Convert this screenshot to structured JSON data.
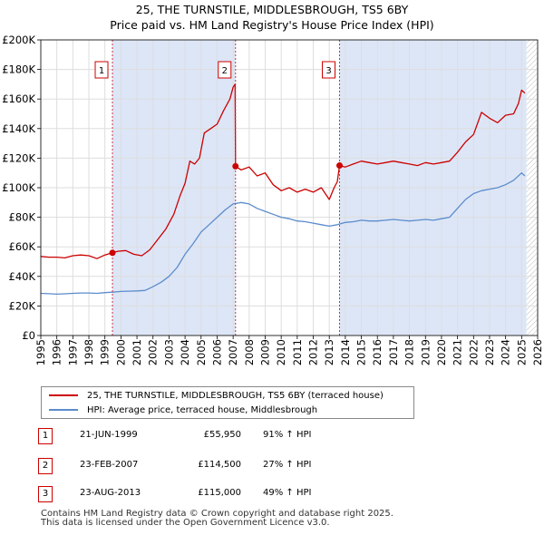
{
  "header": {
    "title_line1": "25, THE TURNSTILE, MIDDLESBROUGH, TS5 6BY",
    "title_line2": "Price paid vs. HM Land Registry's House Price Index (HPI)"
  },
  "colors": {
    "property": "#cc0000",
    "hpi": "#5b8ccc",
    "shade": "#dde6f7",
    "grid": "#dddddd",
    "marker_line": "#cc3344"
  },
  "chart_data": {
    "type": "line",
    "title": "25, THE TURNSTILE, MIDDLESBROUGH, TS5 6BY - Price paid vs. HM Land Registry's House Price Index (HPI)",
    "xlabel": "",
    "ylabel": "",
    "xlim": [
      1995,
      2026
    ],
    "ylim": [
      0,
      200000
    ],
    "x_ticks": [
      "1995",
      "1996",
      "1997",
      "1998",
      "1999",
      "2000",
      "2001",
      "2002",
      "2003",
      "2004",
      "2005",
      "2006",
      "2007",
      "2008",
      "2009",
      "2010",
      "2011",
      "2012",
      "2013",
      "2014",
      "2015",
      "2016",
      "2017",
      "2018",
      "2019",
      "2020",
      "2021",
      "2022",
      "2023",
      "2024",
      "2025",
      "2026"
    ],
    "y_ticks": [
      {
        "value": 0,
        "label": "£0"
      },
      {
        "value": 20000,
        "label": "£20K"
      },
      {
        "value": 40000,
        "label": "£40K"
      },
      {
        "value": 60000,
        "label": "£60K"
      },
      {
        "value": 80000,
        "label": "£80K"
      },
      {
        "value": 100000,
        "label": "£100K"
      },
      {
        "value": 120000,
        "label": "£120K"
      },
      {
        "value": 140000,
        "label": "£140K"
      },
      {
        "value": 160000,
        "label": "£160K"
      },
      {
        "value": 180000,
        "label": "£180K"
      },
      {
        "value": 200000,
        "label": "£200K"
      }
    ],
    "grid": true,
    "shaded_periods": [
      [
        1999.47,
        2007.15
      ],
      [
        2013.64,
        2025.3
      ]
    ],
    "future_hatch_from": 2025.3,
    "series": [
      {
        "name": "25, THE TURNSTILE, MIDDLESBROUGH, TS5 6BY (terraced house)",
        "x": [
          1995,
          1995.5,
          1996,
          1996.5,
          1997,
          1997.5,
          1998,
          1998.5,
          1999,
          1999.47,
          1999.8,
          2000.3,
          2000.8,
          2001.3,
          2001.8,
          2002.3,
          2002.8,
          2003.3,
          2003.7,
          2004.0,
          2004.3,
          2004.6,
          2004.9,
          2005.2,
          2005.6,
          2006.0,
          2006.4,
          2006.8,
          2007.0,
          2007.12,
          2007.15,
          2007.5,
          2008.0,
          2008.5,
          2009.0,
          2009.5,
          2010.0,
          2010.5,
          2011.0,
          2011.5,
          2012.0,
          2012.5,
          2013.0,
          2013.3,
          2013.5,
          2013.64,
          2014.0,
          2014.5,
          2015.0,
          2015.5,
          2016.0,
          2016.5,
          2017.0,
          2017.5,
          2018.0,
          2018.5,
          2019.0,
          2019.5,
          2020.0,
          2020.5,
          2021.0,
          2021.5,
          2022.0,
          2022.5,
          2023.0,
          2023.5,
          2024.0,
          2024.5,
          2024.8,
          2025.0,
          2025.2
        ],
        "values": [
          53500,
          53000,
          53000,
          52500,
          54000,
          54500,
          54000,
          52000,
          54500,
          55950,
          57000,
          57500,
          55000,
          54000,
          58000,
          65000,
          72000,
          82000,
          95000,
          103000,
          118000,
          116000,
          120000,
          137000,
          140000,
          143000,
          152000,
          160000,
          168000,
          170000,
          114500,
          112000,
          114000,
          108000,
          110000,
          102000,
          98000,
          100000,
          97000,
          99000,
          97000,
          100000,
          92000,
          100000,
          104000,
          115000,
          114000,
          116000,
          118000,
          117000,
          116000,
          117000,
          118000,
          117000,
          116000,
          115000,
          117000,
          116000,
          117000,
          118000,
          124000,
          131000,
          136000,
          151000,
          147000,
          144000,
          149000,
          150000,
          157000,
          166000,
          164000
        ]
      },
      {
        "name": "HPI: Average price, terraced house, Middlesbrough",
        "x": [
          1995,
          1995.5,
          1996,
          1996.5,
          1997,
          1997.5,
          1998,
          1998.5,
          1999,
          1999.5,
          2000,
          2000.5,
          2001,
          2001.5,
          2002,
          2002.5,
          2003,
          2003.5,
          2004,
          2004.5,
          2005,
          2005.5,
          2006,
          2006.5,
          2007,
          2007.5,
          2008,
          2008.5,
          2009,
          2009.5,
          2010,
          2010.5,
          2011,
          2011.5,
          2012,
          2012.5,
          2013,
          2013.5,
          2014,
          2014.5,
          2015,
          2015.5,
          2016,
          2016.5,
          2017,
          2017.5,
          2018,
          2018.5,
          2019,
          2019.5,
          2020,
          2020.5,
          2021,
          2021.5,
          2022,
          2022.5,
          2023,
          2023.5,
          2024,
          2024.5,
          2025,
          2025.2
        ],
        "values": [
          28500,
          28300,
          28000,
          28200,
          28500,
          28800,
          28800,
          28500,
          29000,
          29300,
          29800,
          30000,
          30200,
          30500,
          33000,
          36000,
          40000,
          46000,
          55000,
          62000,
          70000,
          75000,
          80000,
          85000,
          89000,
          90000,
          89000,
          86000,
          84000,
          82000,
          80000,
          79000,
          77500,
          77000,
          76000,
          75000,
          74000,
          75000,
          76500,
          77000,
          78000,
          77500,
          77500,
          78000,
          78500,
          78000,
          77500,
          78000,
          78500,
          78000,
          79000,
          80000,
          86000,
          92000,
          96000,
          98000,
          99000,
          100000,
          102000,
          105000,
          110000,
          108000
        ]
      }
    ],
    "sales": [
      {
        "id": "1",
        "x": 1999.47,
        "value": 55950
      },
      {
        "id": "2",
        "x": 2007.15,
        "value": 114500
      },
      {
        "id": "3",
        "x": 2013.64,
        "value": 115000
      }
    ]
  },
  "legend": {
    "property_label": "25, THE TURNSTILE, MIDDLESBROUGH, TS5 6BY (terraced house)",
    "hpi_label": "HPI: Average price, terraced house, Middlesbrough"
  },
  "sales_table": [
    {
      "id": "1",
      "date": "21-JUN-1999",
      "price": "£55,950",
      "hpi": "91% ↑ HPI"
    },
    {
      "id": "2",
      "date": "23-FEB-2007",
      "price": "£114,500",
      "hpi": "27% ↑ HPI"
    },
    {
      "id": "3",
      "date": "23-AUG-2013",
      "price": "£115,000",
      "hpi": "49% ↑ HPI"
    }
  ],
  "footer": {
    "line1": "Contains HM Land Registry data © Crown copyright and database right 2025.",
    "line2": "This data is licensed under the Open Government Licence v3.0."
  }
}
